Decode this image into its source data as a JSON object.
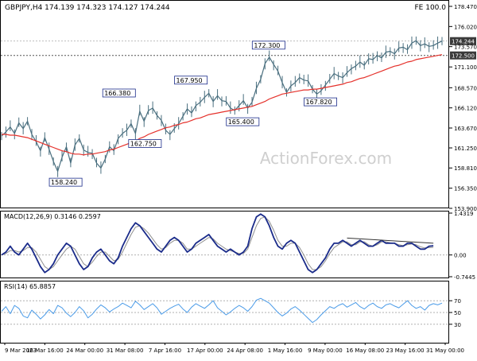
{
  "header": {
    "symbol_line": "GBPJPY,H4  174.139 174.323 174.127 174.244",
    "fe_label": "FE 100.0",
    "watermark": "ActionForex.com"
  },
  "colors": {
    "price": "#4a6f7f",
    "ma": "#e5312b",
    "macd_line": "#1a2b8a",
    "macd_signal": "#8f8f8f",
    "rsi": "#4a9be8",
    "grid_dotted": "#b0b0b0",
    "label_box_border": "#1a2b8a",
    "price_tag_bg": "#3a3a3a"
  },
  "chart_data": [
    {
      "type": "line",
      "name": "price",
      "title": "GBPJPY,H4  174.139 174.323 174.127 174.244",
      "y_ticks": [
        153.9,
        156.35,
        158.81,
        161.25,
        163.67,
        166.12,
        168.57,
        171.1,
        173.57,
        176.02,
        178.47
      ],
      "ylim": [
        153.9,
        178.47
      ],
      "x_ticks": [
        "9 Mar 2023",
        "16 Mar 16:00",
        "24 Mar 00:00",
        "31 Mar 08:00",
        "7 Apr 16:00",
        "17 Apr 00:00",
        "24 Apr 08:00",
        "1 May 16:00",
        "9 May 00:00",
        "16 May 08:00",
        "23 May 16:00",
        "31 May 00:00"
      ],
      "current_price": 174.244,
      "reference_level": 172.5,
      "annotations": [
        {
          "label": "158.240",
          "value": 158.24
        },
        {
          "label": "166.380",
          "value": 166.38
        },
        {
          "label": "162.750",
          "value": 162.75
        },
        {
          "label": "167.950",
          "value": 167.95
        },
        {
          "label": "165.400",
          "value": 165.4
        },
        {
          "label": "172.300",
          "value": 172.3
        },
        {
          "label": "167.820",
          "value": 167.82
        }
      ],
      "series": [
        {
          "values": [
            162.7,
            163.2,
            163.8,
            163.0,
            164.3,
            163.6,
            164.5,
            162.9,
            162.0,
            160.9,
            162.5,
            161.1,
            159.6,
            158.4,
            160.1,
            161.4,
            159.4,
            161.6,
            162.4,
            161.0,
            160.7,
            160.6,
            159.4,
            158.8,
            159.9,
            161.4,
            160.9,
            162.4,
            163.0,
            163.4,
            164.2,
            163.0,
            165.7,
            164.5,
            165.8,
            166.1,
            165.2,
            164.6,
            163.4,
            162.9,
            163.6,
            164.2,
            165.1,
            166.0,
            165.5,
            166.4,
            166.8,
            167.4,
            167.9,
            166.9,
            167.6,
            167.0,
            166.9,
            166.1,
            165.8,
            166.4,
            167.0,
            166.1,
            166.8,
            168.5,
            169.6,
            171.5,
            172.3,
            171.4,
            170.6,
            169.2,
            168.0,
            168.8,
            169.2,
            169.8,
            169.5,
            169.4,
            168.4,
            167.8,
            168.2,
            168.9,
            169.6,
            170.3,
            170.0,
            169.8,
            170.4,
            170.9,
            171.2,
            171.7,
            171.3,
            172.1,
            172.0,
            172.5,
            172.2,
            172.9,
            173.0,
            172.7,
            173.4,
            173.5,
            173.2,
            174.0,
            174.3,
            173.7,
            173.9,
            173.6,
            173.7,
            174.0,
            174.244
          ]
        },
        {
          "values": [
            162.9,
            162.9,
            162.8,
            162.8,
            162.7,
            162.6,
            162.5,
            162.3,
            162.1,
            161.9,
            161.7,
            161.5,
            161.3,
            161.1,
            160.9,
            160.8,
            160.6,
            160.5,
            160.5,
            160.4,
            160.5,
            160.5,
            160.6,
            160.7,
            160.8,
            161.0,
            161.1,
            161.3,
            161.5,
            161.7,
            161.9,
            162.1,
            162.4,
            162.6,
            162.9,
            163.1,
            163.3,
            163.5,
            163.7,
            163.8,
            164.0,
            164.1,
            164.3,
            164.4,
            164.6,
            164.8,
            164.9,
            165.1,
            165.3,
            165.4,
            165.5,
            165.6,
            165.7,
            165.8,
            165.9,
            166.0,
            166.1,
            166.2,
            166.3,
            166.5,
            166.7,
            166.9,
            167.2,
            167.4,
            167.6,
            167.8,
            167.9,
            168.0,
            168.1,
            168.2,
            168.3,
            168.3,
            168.4,
            168.4,
            168.5,
            168.6,
            168.7,
            168.8,
            168.9,
            169.0,
            169.2,
            169.3,
            169.5,
            169.7,
            169.8,
            170.0,
            170.2,
            170.4,
            170.6,
            170.8,
            171.0,
            171.2,
            171.3,
            171.5,
            171.7,
            171.8,
            172.0,
            172.1,
            172.2,
            172.3,
            172.4,
            172.5,
            172.6
          ]
        }
      ]
    },
    {
      "type": "line",
      "name": "macd",
      "title": "MACD(12,26,9) 0.3146 0.2597",
      "y_ticks": [
        -0.7445,
        0.0,
        1.4319
      ],
      "ylim": [
        -0.7445,
        1.4319
      ],
      "current_values": [
        0.3146,
        0.2597
      ],
      "series": [
        {
          "values": [
            0.0,
            0.1,
            0.3,
            0.1,
            0.0,
            0.2,
            0.4,
            0.2,
            -0.1,
            -0.4,
            -0.6,
            -0.5,
            -0.3,
            0.0,
            0.2,
            0.4,
            0.3,
            0.0,
            -0.3,
            -0.5,
            -0.4,
            -0.1,
            0.1,
            0.2,
            0.0,
            -0.2,
            -0.3,
            -0.1,
            0.3,
            0.6,
            0.9,
            1.1,
            1.0,
            0.8,
            0.6,
            0.4,
            0.2,
            0.1,
            0.3,
            0.5,
            0.6,
            0.5,
            0.3,
            0.1,
            0.2,
            0.4,
            0.5,
            0.6,
            0.7,
            0.5,
            0.3,
            0.2,
            0.1,
            0.2,
            0.1,
            0.0,
            0.1,
            0.3,
            0.9,
            1.3,
            1.4,
            1.3,
            1.0,
            0.6,
            0.3,
            0.2,
            0.4,
            0.5,
            0.4,
            0.1,
            -0.2,
            -0.5,
            -0.6,
            -0.5,
            -0.3,
            -0.1,
            0.2,
            0.4,
            0.4,
            0.5,
            0.4,
            0.3,
            0.4,
            0.5,
            0.4,
            0.3,
            0.3,
            0.4,
            0.5,
            0.4,
            0.4,
            0.4,
            0.3,
            0.3,
            0.4,
            0.4,
            0.3,
            0.2,
            0.2,
            0.3,
            0.3146
          ]
        },
        {
          "values": [
            0.0,
            0.05,
            0.15,
            0.15,
            0.1,
            0.15,
            0.25,
            0.25,
            0.1,
            -0.15,
            -0.4,
            -0.5,
            -0.4,
            -0.2,
            0.0,
            0.2,
            0.3,
            0.2,
            -0.05,
            -0.3,
            -0.4,
            -0.25,
            -0.05,
            0.1,
            0.1,
            -0.05,
            -0.2,
            -0.15,
            0.1,
            0.4,
            0.7,
            0.95,
            1.0,
            0.9,
            0.75,
            0.55,
            0.35,
            0.2,
            0.25,
            0.4,
            0.5,
            0.5,
            0.4,
            0.2,
            0.2,
            0.3,
            0.4,
            0.5,
            0.6,
            0.55,
            0.4,
            0.3,
            0.2,
            0.15,
            0.1,
            0.05,
            0.05,
            0.2,
            0.6,
            1.0,
            1.25,
            1.3,
            1.15,
            0.85,
            0.5,
            0.3,
            0.3,
            0.4,
            0.4,
            0.25,
            0.0,
            -0.3,
            -0.5,
            -0.5,
            -0.4,
            -0.2,
            0.05,
            0.25,
            0.35,
            0.45,
            0.45,
            0.35,
            0.35,
            0.45,
            0.45,
            0.35,
            0.3,
            0.35,
            0.45,
            0.45,
            0.42,
            0.4,
            0.35,
            0.32,
            0.35,
            0.38,
            0.35,
            0.28,
            0.24,
            0.25,
            0.2597
          ]
        }
      ]
    },
    {
      "type": "line",
      "name": "rsi",
      "title": "RSI(14) 65.8857",
      "y_ticks": [
        30,
        50,
        70
      ],
      "ylim": [
        0,
        100
      ],
      "current_value": 65.8857,
      "series": [
        {
          "values": [
            52,
            60,
            48,
            62,
            57,
            44,
            41,
            54,
            47,
            39,
            46,
            55,
            48,
            62,
            58,
            49,
            43,
            50,
            60,
            53,
            41,
            47,
            56,
            63,
            58,
            51,
            56,
            60,
            66,
            62,
            58,
            69,
            63,
            55,
            60,
            65,
            58,
            47,
            52,
            57,
            61,
            64,
            56,
            50,
            59,
            65,
            61,
            57,
            63,
            70,
            58,
            52,
            46,
            51,
            57,
            62,
            58,
            52,
            60,
            71,
            74,
            70,
            66,
            58,
            50,
            44,
            49,
            56,
            60,
            54,
            47,
            40,
            33,
            38,
            46,
            53,
            60,
            57,
            62,
            65,
            59,
            63,
            67,
            60,
            56,
            62,
            66,
            60,
            57,
            63,
            65,
            61,
            58,
            64,
            70,
            62,
            57,
            60,
            54,
            62,
            65,
            63,
            65.8857
          ]
        }
      ]
    }
  ]
}
